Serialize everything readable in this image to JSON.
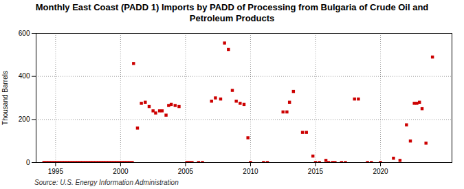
{
  "chart_data": {
    "type": "scatter",
    "title": "Monthly East Coast (PADD 1) Imports by PADD of Processing from Bulgaria of Crude Oil and\nPetroleum Products",
    "ylabel": "Thousand Barrels",
    "source": "Source: U.S. Energy Information Administration",
    "color": "#cc0000",
    "marker": "square",
    "grid": true,
    "xlim": [
      1993.5,
      2025.5
    ],
    "ylim": [
      0,
      600
    ],
    "xticks": [
      1995,
      2000,
      2005,
      2010,
      2015,
      2020
    ],
    "yticks": [
      0,
      200,
      400,
      600
    ],
    "x": [
      1994.1,
      1994.3,
      1994.5,
      1994.7,
      1994.9,
      1995.1,
      1995.3,
      1995.5,
      1995.7,
      1995.9,
      1996.1,
      1996.3,
      1996.5,
      1996.7,
      1996.9,
      1997.1,
      1997.3,
      1997.5,
      1997.7,
      1997.9,
      1998.1,
      1998.3,
      1998.5,
      1998.7,
      1998.9,
      1999.1,
      1999.3,
      1999.5,
      1999.7,
      1999.9,
      2000.1,
      2000.3,
      2000.5,
      2000.7,
      2000.9,
      2001.0,
      2001.3,
      2001.6,
      2001.9,
      2002.2,
      2002.5,
      2002.7,
      2003.0,
      2003.2,
      2003.5,
      2003.7,
      2003.9,
      2004.2,
      2004.5,
      2005.1,
      2005.3,
      2005.5,
      2006.0,
      2006.3,
      2007.0,
      2007.3,
      2007.7,
      2008.0,
      2008.3,
      2008.6,
      2008.9,
      2009.2,
      2009.5,
      2009.8,
      2010.0,
      2011.0,
      2011.3,
      2012.5,
      2012.8,
      2013.0,
      2013.3,
      2014.0,
      2014.3,
      2014.8,
      2015.0,
      2015.3,
      2015.8,
      2016.0,
      2016.3,
      2016.5,
      2017.0,
      2017.3,
      2018.0,
      2018.3,
      2019.0,
      2019.3,
      2020.0,
      2021.0,
      2021.5,
      2022.0,
      2022.3,
      2022.6,
      2022.8,
      2023.0,
      2023.2,
      2023.5,
      2024.0
    ],
    "values": [
      0,
      0,
      0,
      0,
      0,
      0,
      0,
      0,
      0,
      0,
      0,
      0,
      0,
      0,
      0,
      0,
      0,
      0,
      0,
      0,
      0,
      0,
      0,
      0,
      0,
      0,
      0,
      0,
      0,
      0,
      0,
      0,
      0,
      0,
      0,
      460,
      160,
      275,
      280,
      260,
      240,
      230,
      240,
      240,
      220,
      265,
      270,
      265,
      260,
      0,
      0,
      0,
      0,
      0,
      285,
      300,
      295,
      555,
      525,
      335,
      285,
      275,
      270,
      115,
      0,
      0,
      0,
      235,
      235,
      280,
      330,
      140,
      140,
      30,
      0,
      0,
      10,
      0,
      0,
      0,
      0,
      0,
      295,
      295,
      0,
      0,
      0,
      20,
      10,
      175,
      100,
      275,
      275,
      280,
      250,
      90,
      490
    ]
  }
}
